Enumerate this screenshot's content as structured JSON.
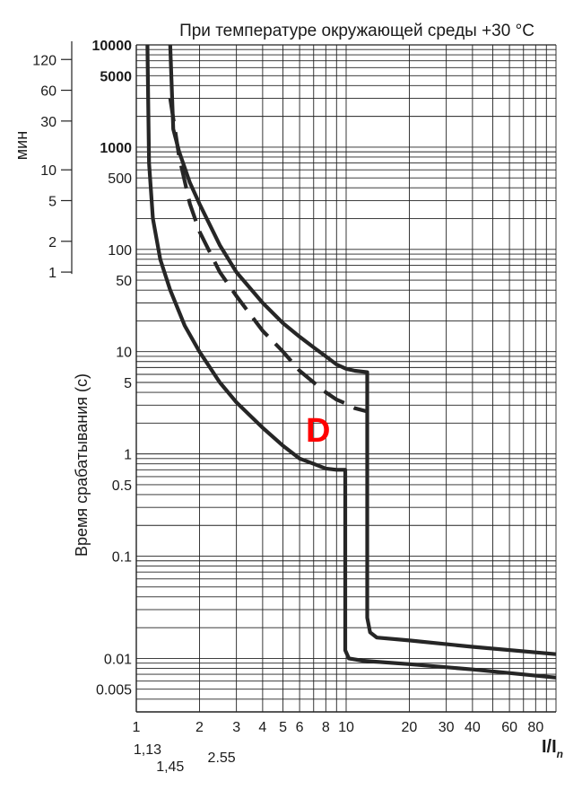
{
  "chart_data": {
    "type": "line",
    "title": "При температуре окружающей среды +30 °C",
    "xlabel_main": "I/I",
    "xlabel_sub": "n",
    "ylabel_seconds": "Время срабатывания (с)",
    "ylabel_minutes": "мин",
    "curve_label": "D",
    "x_scale": "log",
    "y_scale": "log",
    "xlim": [
      1,
      100
    ],
    "ylim": [
      0.003,
      10000
    ],
    "grid": true,
    "x_ticks": [
      {
        "value": 1,
        "label": "1"
      },
      {
        "value": 2,
        "label": "2"
      },
      {
        "value": 3,
        "label": "3"
      },
      {
        "value": 4,
        "label": "4"
      },
      {
        "value": 5,
        "label": "5"
      },
      {
        "value": 6,
        "label": "6"
      },
      {
        "value": 8,
        "label": "8"
      },
      {
        "value": 10,
        "label": "10"
      },
      {
        "value": 20,
        "label": "20"
      },
      {
        "value": 30,
        "label": "30"
      },
      {
        "value": 40,
        "label": "40"
      },
      {
        "value": 60,
        "label": "60"
      },
      {
        "value": 80,
        "label": "80"
      }
    ],
    "x_ticks_extra": [
      {
        "value": 1.13,
        "label": "1,13"
      },
      {
        "value": 1.45,
        "label": "1,45"
      },
      {
        "value": 2.55,
        "label": "2.55"
      }
    ],
    "y_ticks_seconds": [
      {
        "value": 10000,
        "label": "10000"
      },
      {
        "value": 5000,
        "label": "5000"
      },
      {
        "value": 1000,
        "label": "1000"
      },
      {
        "value": 500,
        "label": "500"
      },
      {
        "value": 100,
        "label": "100"
      },
      {
        "value": 50,
        "label": "50"
      },
      {
        "value": 10,
        "label": "10"
      },
      {
        "value": 5,
        "label": "5"
      },
      {
        "value": 1,
        "label": "1"
      },
      {
        "value": 0.5,
        "label": "0.5"
      },
      {
        "value": 0.1,
        "label": "0.1"
      },
      {
        "value": 0.01,
        "label": "0.01"
      },
      {
        "value": 0.005,
        "label": "0.005"
      }
    ],
    "y_ticks_minutes": [
      {
        "value": 120,
        "label": "120"
      },
      {
        "value": 60,
        "label": "60"
      },
      {
        "value": 30,
        "label": "30"
      },
      {
        "value": 10,
        "label": "10"
      },
      {
        "value": 5,
        "label": "5"
      },
      {
        "value": 2,
        "label": "2"
      },
      {
        "value": 1,
        "label": "1"
      }
    ],
    "series": [
      {
        "style": "solid",
        "points": [
          [
            1.13,
            10000
          ],
          [
            1.15,
            700
          ],
          [
            1.2,
            200
          ],
          [
            1.3,
            80
          ],
          [
            1.45,
            40
          ],
          [
            1.7,
            18
          ],
          [
            2,
            10
          ],
          [
            2.5,
            5
          ],
          [
            3,
            3.2
          ],
          [
            4,
            1.8
          ],
          [
            5,
            1.2
          ],
          [
            6,
            0.9
          ],
          [
            7,
            0.8
          ],
          [
            8,
            0.72
          ],
          [
            9,
            0.7
          ],
          [
            9.9,
            0.7
          ],
          [
            9.9,
            0.012
          ],
          [
            10.3,
            0.01
          ],
          [
            12,
            0.0095
          ],
          [
            20,
            0.0088
          ],
          [
            40,
            0.0078
          ],
          [
            100,
            0.0065
          ]
        ]
      },
      {
        "style": "solid",
        "points": [
          [
            1.45,
            10000
          ],
          [
            1.5,
            1500
          ],
          [
            1.6,
            900
          ],
          [
            1.8,
            450
          ],
          [
            2,
            280
          ],
          [
            2.5,
            110
          ],
          [
            3,
            60
          ],
          [
            4,
            30
          ],
          [
            5,
            19
          ],
          [
            6,
            14
          ],
          [
            7,
            11
          ],
          [
            8,
            9
          ],
          [
            9,
            7.5
          ],
          [
            10,
            6.8
          ],
          [
            11,
            6.5
          ],
          [
            12.6,
            6.3
          ],
          [
            12.6,
            0.025
          ],
          [
            13,
            0.018
          ],
          [
            14,
            0.016
          ],
          [
            20,
            0.015
          ],
          [
            40,
            0.013
          ],
          [
            100,
            0.011
          ]
        ]
      },
      {
        "style": "dashed",
        "points": [
          [
            1.45,
            3000
          ],
          [
            1.6,
            800
          ],
          [
            1.8,
            280
          ],
          [
            2,
            150
          ],
          [
            2.5,
            60
          ],
          [
            3,
            35
          ],
          [
            4,
            16
          ],
          [
            5,
            10
          ],
          [
            6,
            6.5
          ],
          [
            7,
            5
          ],
          [
            8,
            4
          ],
          [
            9,
            3.4
          ],
          [
            10,
            3.1
          ],
          [
            11,
            2.8
          ],
          [
            12.6,
            2.6
          ]
        ]
      }
    ]
  }
}
